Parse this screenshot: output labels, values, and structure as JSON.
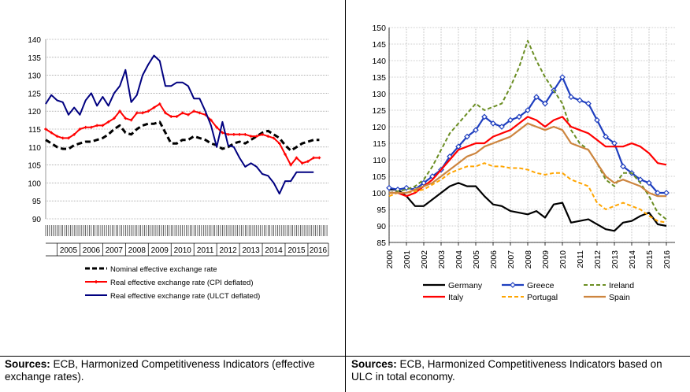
{
  "chart_data": [
    {
      "type": "line",
      "ylim": [
        90,
        140
      ],
      "yticks": [
        90,
        95,
        100,
        105,
        110,
        115,
        120,
        125,
        130,
        135,
        140
      ],
      "xlim": [
        2004.5,
        2016.9
      ],
      "xticks": [
        "2005",
        "2006",
        "2007",
        "2008",
        "2009",
        "2010",
        "2011",
        "2012",
        "2013",
        "2014",
        "2015",
        "2016"
      ],
      "grid": true,
      "legend_position": "bottom",
      "series": [
        {
          "name": "Nominal effective exchange rate",
          "color": "#000000",
          "dash": true,
          "x": [
            2004.5,
            2004.75,
            2005.0,
            2005.25,
            2005.5,
            2005.75,
            2006.0,
            2006.25,
            2006.5,
            2006.75,
            2007.0,
            2007.25,
            2007.5,
            2007.75,
            2008.0,
            2008.25,
            2008.5,
            2008.75,
            2009.0,
            2009.25,
            2009.5,
            2009.75,
            2010.0,
            2010.25,
            2010.5,
            2010.75,
            2011.0,
            2011.25,
            2011.5,
            2011.75,
            2012.0,
            2012.25,
            2012.5,
            2012.75,
            2013.0,
            2013.25,
            2013.5,
            2013.75,
            2014.0,
            2014.25,
            2014.5,
            2014.75,
            2015.0,
            2015.25,
            2015.5,
            2015.75,
            2016.0,
            2016.25,
            2016.5
          ],
          "y": [
            112,
            111,
            110,
            109.5,
            109.5,
            110.5,
            111,
            111.5,
            111.5,
            112,
            112.5,
            113.5,
            115,
            116,
            114,
            113.5,
            115,
            116,
            116.5,
            116.5,
            117,
            114,
            111,
            111,
            112,
            112,
            113,
            112.5,
            112,
            111,
            110.5,
            109.5,
            110,
            111,
            111.5,
            111,
            112,
            113,
            114,
            114.5,
            113.5,
            112.5,
            110.5,
            109,
            110,
            111,
            111.5,
            112,
            112
          ]
        },
        {
          "name": "Real effective exchange rate (CPI deflated)",
          "color": "#ff0000",
          "dash": false,
          "x": [
            2004.5,
            2004.75,
            2005.0,
            2005.25,
            2005.5,
            2005.75,
            2006.0,
            2006.25,
            2006.5,
            2006.75,
            2007.0,
            2007.25,
            2007.5,
            2007.75,
            2008.0,
            2008.25,
            2008.5,
            2008.75,
            2009.0,
            2009.25,
            2009.5,
            2009.75,
            2010.0,
            2010.25,
            2010.5,
            2010.75,
            2011.0,
            2011.25,
            2011.5,
            2011.75,
            2012.0,
            2012.25,
            2012.5,
            2012.75,
            2013.0,
            2013.25,
            2013.5,
            2013.75,
            2014.0,
            2014.25,
            2014.5,
            2014.75,
            2015.0,
            2015.25,
            2015.5,
            2015.75,
            2016.0,
            2016.25,
            2016.5
          ],
          "y": [
            115,
            114,
            113,
            112.5,
            112.5,
            113.5,
            115,
            115.5,
            115.5,
            116,
            116,
            117,
            118,
            120,
            118,
            117.5,
            119.5,
            119.5,
            120,
            121,
            122,
            119.5,
            118.5,
            118.5,
            119.5,
            119,
            120,
            119.5,
            119,
            117.5,
            115.5,
            114,
            113.5,
            113.5,
            113.5,
            113.5,
            113,
            113,
            113.5,
            113,
            112.5,
            111,
            108,
            105,
            107,
            105.5,
            106,
            107,
            107
          ]
        },
        {
          "name": "Real effective exchange rate (ULCT deflated)",
          "color": "#000080",
          "dash": false,
          "x": [
            2004.5,
            2004.75,
            2005.0,
            2005.25,
            2005.5,
            2005.75,
            2006.0,
            2006.25,
            2006.5,
            2006.75,
            2007.0,
            2007.25,
            2007.5,
            2007.75,
            2008.0,
            2008.25,
            2008.5,
            2008.75,
            2009.0,
            2009.25,
            2009.5,
            2009.75,
            2010.0,
            2010.25,
            2010.5,
            2010.75,
            2011.0,
            2011.25,
            2011.5,
            2011.75,
            2012.0,
            2012.25,
            2012.5,
            2012.75,
            2013.0,
            2013.25,
            2013.5,
            2013.75,
            2014.0,
            2014.25,
            2014.5,
            2014.75,
            2015.0,
            2015.25,
            2015.5,
            2015.75,
            2016.0,
            2016.25
          ],
          "y": [
            122,
            124.5,
            123,
            122.5,
            119,
            121,
            119,
            123,
            125,
            121.5,
            124,
            121.5,
            125,
            127,
            131.5,
            122.5,
            124.5,
            130,
            133,
            135.5,
            134,
            127,
            127,
            128,
            128,
            127,
            123.5,
            123.5,
            120,
            116,
            110,
            117,
            110.5,
            110,
            107,
            104.5,
            105.5,
            104.5,
            102.5,
            102,
            100,
            97,
            100.5,
            100.5,
            103,
            103,
            103,
            103
          ]
        }
      ]
    },
    {
      "type": "line",
      "ylim": [
        85,
        150
      ],
      "yticks": [
        85,
        90,
        95,
        100,
        105,
        110,
        115,
        120,
        125,
        130,
        135,
        140,
        145,
        150
      ],
      "xlim": [
        2000,
        2016.5
      ],
      "xticks": [
        "2000",
        "2001",
        "2002",
        "2003",
        "2004",
        "2005",
        "2006",
        "2007",
        "2008",
        "2009",
        "2010",
        "2011",
        "2012",
        "2013",
        "2014",
        "2015",
        "2016"
      ],
      "grid": true,
      "legend_position": "bottom",
      "series": [
        {
          "name": "Germany",
          "color": "#000000",
          "style": "solid",
          "x": [
            2000,
            2000.5,
            2001,
            2001.5,
            2002,
            2002.5,
            2003,
            2003.5,
            2004,
            2004.5,
            2005,
            2005.5,
            2006,
            2006.5,
            2007,
            2007.5,
            2008,
            2008.5,
            2009,
            2009.5,
            2010,
            2010.5,
            2011,
            2011.5,
            2012,
            2012.5,
            2013,
            2013.5,
            2014,
            2014.5,
            2015,
            2015.5,
            2016
          ],
          "y": [
            101,
            101,
            99,
            96,
            96,
            98,
            100,
            102,
            103,
            102,
            102,
            99,
            96.5,
            96,
            94.5,
            94,
            93.5,
            94.5,
            92.5,
            96.5,
            97,
            91,
            91.5,
            92,
            90.5,
            89,
            88.5,
            91,
            91.5,
            93,
            94,
            90.5,
            90
          ]
        },
        {
          "name": "Greece",
          "color": "#1f3fbf",
          "style": "diamond",
          "x": [
            2000,
            2000.5,
            2001,
            2001.5,
            2002,
            2002.5,
            2003,
            2003.5,
            2004,
            2004.5,
            2005,
            2005.5,
            2006,
            2006.5,
            2007,
            2007.5,
            2008,
            2008.5,
            2009,
            2009.5,
            2010,
            2010.5,
            2011,
            2011.5,
            2012,
            2012.5,
            2013,
            2013.5,
            2014,
            2014.5,
            2015,
            2015.5,
            2016
          ],
          "y": [
            101.5,
            101,
            101.5,
            101,
            103,
            105,
            107,
            111,
            114,
            117,
            119,
            123,
            121,
            120,
            122,
            123,
            125,
            129,
            127,
            131,
            135,
            129,
            128,
            127,
            122,
            117,
            115,
            108,
            106,
            104,
            103,
            100,
            100
          ]
        },
        {
          "name": "Ireland",
          "color": "#6b8e23",
          "style": "dashed",
          "x": [
            2000,
            2000.5,
            2001,
            2001.5,
            2002,
            2002.5,
            2003,
            2003.5,
            2004,
            2004.5,
            2005,
            2005.5,
            2006,
            2006.5,
            2007,
            2007.5,
            2008,
            2008.5,
            2009,
            2009.5,
            2010,
            2010.5,
            2011,
            2011.5,
            2012,
            2012.5,
            2013,
            2013.5,
            2014,
            2014.5,
            2015,
            2015.5,
            2016
          ],
          "y": [
            100,
            100.5,
            101,
            102,
            104,
            108,
            113,
            118,
            121,
            124,
            127,
            125,
            126,
            127,
            132,
            138,
            146,
            140,
            135,
            131,
            127,
            119,
            115,
            113,
            109,
            104,
            102,
            106,
            106,
            103,
            99,
            94,
            92
          ]
        },
        {
          "name": "Italy",
          "color": "#ff0000",
          "style": "solid",
          "x": [
            2000,
            2000.5,
            2001,
            2001.5,
            2002,
            2002.5,
            2003,
            2003.5,
            2004,
            2004.5,
            2005,
            2005.5,
            2006,
            2006.5,
            2007,
            2007.5,
            2008,
            2008.5,
            2009,
            2009.5,
            2010,
            2010.5,
            2011,
            2011.5,
            2012,
            2012.5,
            2013,
            2013.5,
            2014,
            2014.5,
            2015,
            2015.5,
            2016
          ],
          "y": [
            100,
            100,
            99,
            100,
            102,
            104,
            107,
            110,
            113,
            114,
            115,
            115,
            117,
            118,
            119,
            121,
            123,
            122,
            120,
            122,
            123,
            120,
            119,
            118,
            116,
            114,
            114,
            114,
            115,
            114,
            112,
            109,
            108.5
          ]
        },
        {
          "name": "Portugal",
          "color": "#ffa500",
          "style": "dashed",
          "x": [
            2000,
            2000.5,
            2001,
            2001.5,
            2002,
            2002.5,
            2003,
            2003.5,
            2004,
            2004.5,
            2005,
            2005.5,
            2006,
            2006.5,
            2007,
            2007.5,
            2008,
            2008.5,
            2009,
            2009.5,
            2010,
            2010.5,
            2011,
            2011.5,
            2012,
            2012.5,
            2013,
            2013.5,
            2014,
            2014.5,
            2015,
            2015.5,
            2016
          ],
          "y": [
            99,
            100,
            100,
            100.5,
            101,
            102.5,
            104,
            106,
            107,
            108,
            108,
            109,
            108,
            108,
            107.5,
            107.5,
            107,
            106,
            105.5,
            106,
            106,
            104,
            103,
            102,
            97,
            95,
            96,
            97,
            96,
            95,
            93,
            91.5,
            91
          ]
        },
        {
          "name": "Spain",
          "color": "#cd853f",
          "style": "solid",
          "x": [
            2000,
            2000.5,
            2001,
            2001.5,
            2002,
            2002.5,
            2003,
            2003.5,
            2004,
            2004.5,
            2005,
            2005.5,
            2006,
            2006.5,
            2007,
            2007.5,
            2008,
            2008.5,
            2009,
            2009.5,
            2010,
            2010.5,
            2011,
            2011.5,
            2012,
            2012.5,
            2013,
            2013.5,
            2014,
            2014.5,
            2015,
            2015.5,
            2016
          ],
          "y": [
            100,
            100,
            100,
            101,
            102,
            103,
            105,
            107,
            109,
            111,
            112,
            114,
            115,
            116,
            117,
            119,
            121,
            120,
            119,
            120,
            119,
            115,
            114,
            113,
            109,
            105,
            103,
            104,
            103,
            102,
            100,
            99,
            99
          ]
        }
      ]
    }
  ],
  "sources": [
    {
      "label": "Sources:",
      "text": " ECB, Harmonized Competitiveness Indicators (effective exchange rates)."
    },
    {
      "label": "Sources:",
      "text": " ECB, Harmonized Competitiveness Indicators based on ULC in total economy."
    }
  ]
}
